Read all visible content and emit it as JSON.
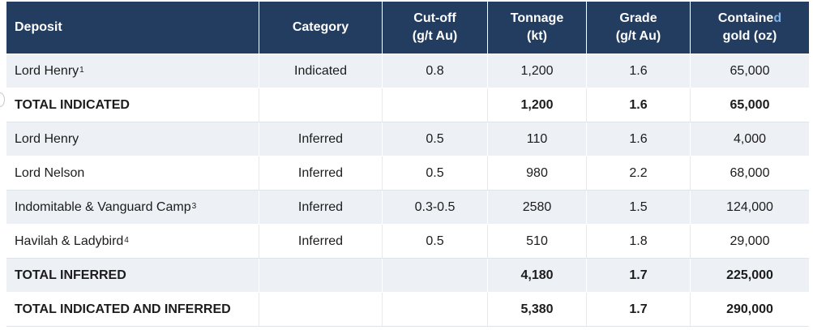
{
  "table": {
    "headers": {
      "deposit": "Deposit",
      "category": "Category",
      "cutoff_line1": "Cut-off",
      "cutoff_line2": "(g/t Au)",
      "tonnage_line1": "Tonnage",
      "tonnage_line2": "(kt)",
      "grade_line1": "Grade",
      "grade_line2": "(g/t Au)",
      "contained_line1_a": "Containe",
      "contained_line1_b": "d",
      "contained_line2": "gold (oz)"
    },
    "rows": [
      {
        "deposit": "Lord Henry",
        "sup": "1",
        "category": "Indicated",
        "cutoff": "0.8",
        "tonnage": "1,200",
        "grade": "1.6",
        "gold": "65,000"
      },
      {
        "deposit": "TOTAL INDICATED",
        "sup": "",
        "category": "",
        "cutoff": "",
        "tonnage": "1,200",
        "grade": "1.6",
        "gold": "65,000"
      },
      {
        "deposit": "Lord Henry",
        "sup": "",
        "category": "Inferred",
        "cutoff": "0.5",
        "tonnage": "110",
        "grade": "1.6",
        "gold": "4,000"
      },
      {
        "deposit": "Lord Nelson",
        "sup": "",
        "category": "Inferred",
        "cutoff": "0.5",
        "tonnage": "980",
        "grade": "2.2",
        "gold": "68,000"
      },
      {
        "deposit": "Indomitable & Vanguard Camp",
        "sup": "3",
        "category": "Inferred",
        "cutoff": "0.3-0.5",
        "tonnage": "2580",
        "grade": "1.5",
        "gold": "124,000"
      },
      {
        "deposit": "Havilah & Ladybird",
        "sup": "4",
        "category": "Inferred",
        "cutoff": "0.5",
        "tonnage": "510",
        "grade": "1.8",
        "gold": "29,000"
      },
      {
        "deposit": "TOTAL INFERRED",
        "sup": "",
        "category": "",
        "cutoff": "",
        "tonnage": "4,180",
        "grade": "1.7",
        "gold": "225,000"
      },
      {
        "deposit": "TOTAL INDICATED AND INFERRED",
        "sup": "",
        "category": "",
        "cutoff": "",
        "tonnage": "5,380",
        "grade": "1.7",
        "gold": "290,000"
      }
    ]
  },
  "colors": {
    "header_bg": "#233d60",
    "header_text": "#ffffff",
    "header_fade_text": "#7fb2e5",
    "row_shaded": "#edf0f5",
    "row_plain": "#ffffff"
  }
}
